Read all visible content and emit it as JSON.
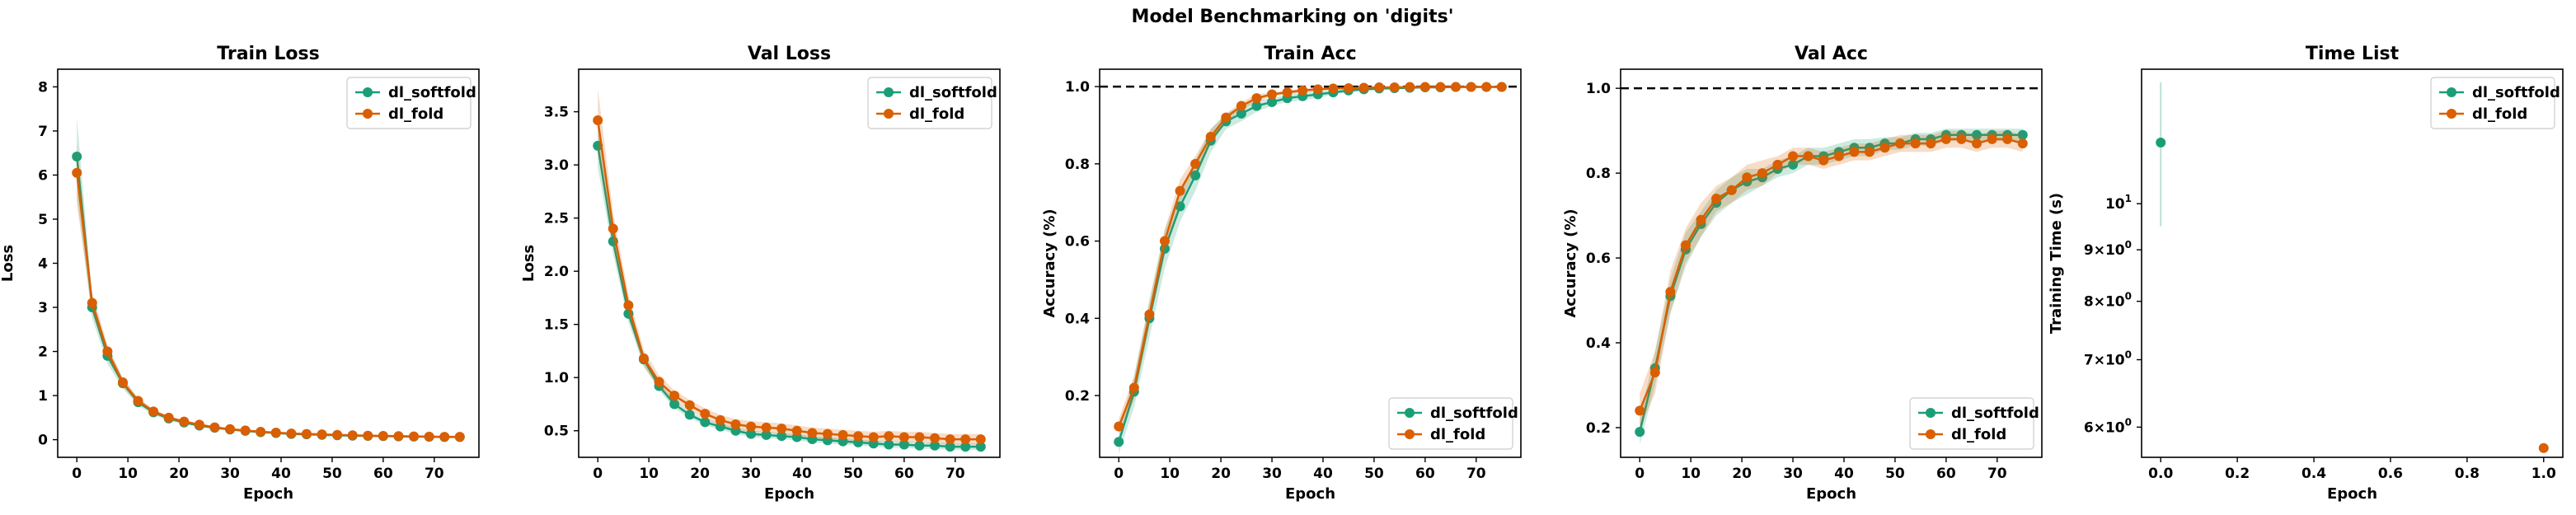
{
  "figure": {
    "title": "Model Benchmarking on 'digits'",
    "series_colors": {
      "dl_softfold": "#1b9e77",
      "dl_fold": "#d95f02"
    }
  },
  "chart_data": [
    {
      "type": "line",
      "title": "Train Loss",
      "xlabel": "Epoch",
      "ylabel": "Loss",
      "xlim": [
        -3.75,
        78.75
      ],
      "ylim": [
        -0.4,
        8.4
      ],
      "xticks": [
        0,
        10,
        20,
        30,
        40,
        50,
        60,
        70
      ],
      "yticks": [
        0,
        1,
        2,
        3,
        4,
        5,
        6,
        7,
        8
      ],
      "grid": false,
      "legend": "top-right",
      "x": [
        0,
        3,
        6,
        9,
        12,
        15,
        18,
        21,
        24,
        27,
        30,
        33,
        36,
        39,
        42,
        45,
        48,
        51,
        54,
        57,
        60,
        63,
        66,
        69,
        72,
        75
      ],
      "series": [
        {
          "name": "dl_softfold",
          "color": "#1b9e77",
          "values": [
            6.42,
            3.0,
            1.9,
            1.28,
            0.85,
            0.62,
            0.48,
            0.39,
            0.32,
            0.27,
            0.23,
            0.2,
            0.17,
            0.15,
            0.13,
            0.12,
            0.11,
            0.1,
            0.09,
            0.085,
            0.08,
            0.075,
            0.07,
            0.065,
            0.06,
            0.06
          ],
          "band": [
            0.9,
            0.25,
            0.18,
            0.12,
            0.08,
            0.06,
            0.05,
            0.04,
            0.03,
            0.03,
            0.02,
            0.02,
            0.02,
            0.02,
            0.02,
            0.02,
            0.01,
            0.01,
            0.01,
            0.01,
            0.01,
            0.01,
            0.01,
            0.01,
            0.01,
            0.01
          ]
        },
        {
          "name": "dl_fold",
          "color": "#d95f02",
          "values": [
            6.05,
            3.1,
            2.0,
            1.3,
            0.88,
            0.64,
            0.5,
            0.41,
            0.34,
            0.28,
            0.24,
            0.21,
            0.18,
            0.16,
            0.14,
            0.13,
            0.12,
            0.11,
            0.1,
            0.09,
            0.085,
            0.08,
            0.075,
            0.07,
            0.065,
            0.065
          ],
          "band": [
            0.7,
            0.22,
            0.16,
            0.1,
            0.07,
            0.05,
            0.04,
            0.03,
            0.03,
            0.02,
            0.02,
            0.02,
            0.02,
            0.02,
            0.02,
            0.01,
            0.01,
            0.01,
            0.01,
            0.01,
            0.01,
            0.01,
            0.01,
            0.01,
            0.01,
            0.01
          ]
        }
      ]
    },
    {
      "type": "line",
      "title": "Val Loss",
      "xlabel": "Epoch",
      "ylabel": "Loss",
      "xlim": [
        -3.75,
        78.75
      ],
      "ylim": [
        0.25,
        3.9
      ],
      "xticks": [
        0,
        10,
        20,
        30,
        40,
        50,
        60,
        70
      ],
      "yticks": [
        0.5,
        1.0,
        1.5,
        2.0,
        2.5,
        3.0,
        3.5
      ],
      "ytick_labels": [
        "0.5",
        "1.0",
        "1.5",
        "2.0",
        "2.5",
        "3.0",
        "3.5"
      ],
      "grid": false,
      "legend": "top-right",
      "x": [
        0,
        3,
        6,
        9,
        12,
        15,
        18,
        21,
        24,
        27,
        30,
        33,
        36,
        39,
        42,
        45,
        48,
        51,
        54,
        57,
        60,
        63,
        66,
        69,
        72,
        75
      ],
      "series": [
        {
          "name": "dl_softfold",
          "color": "#1b9e77",
          "values": [
            3.18,
            2.28,
            1.6,
            1.17,
            0.92,
            0.75,
            0.65,
            0.58,
            0.54,
            0.5,
            0.47,
            0.46,
            0.45,
            0.44,
            0.42,
            0.41,
            0.4,
            0.39,
            0.38,
            0.37,
            0.37,
            0.36,
            0.36,
            0.35,
            0.35,
            0.35
          ],
          "band": [
            0.2,
            0.12,
            0.08,
            0.06,
            0.04,
            0.04,
            0.03,
            0.03,
            0.03,
            0.03,
            0.03,
            0.03,
            0.03,
            0.03,
            0.03,
            0.03,
            0.03,
            0.03,
            0.03,
            0.03,
            0.03,
            0.03,
            0.03,
            0.03,
            0.03,
            0.03
          ]
        },
        {
          "name": "dl_fold",
          "color": "#d95f02",
          "values": [
            3.42,
            2.4,
            1.68,
            1.18,
            0.96,
            0.83,
            0.74,
            0.66,
            0.6,
            0.56,
            0.54,
            0.53,
            0.52,
            0.5,
            0.48,
            0.47,
            0.46,
            0.45,
            0.44,
            0.45,
            0.44,
            0.44,
            0.43,
            0.42,
            0.42,
            0.42
          ],
          "band": [
            0.3,
            0.15,
            0.1,
            0.08,
            0.06,
            0.05,
            0.05,
            0.05,
            0.05,
            0.05,
            0.05,
            0.05,
            0.05,
            0.05,
            0.05,
            0.05,
            0.05,
            0.05,
            0.05,
            0.05,
            0.05,
            0.05,
            0.05,
            0.05,
            0.05,
            0.05
          ]
        }
      ]
    },
    {
      "type": "line",
      "title": "Train Acc",
      "xlabel": "Epoch",
      "ylabel": "Accuracy (%)",
      "xlim": [
        -3.75,
        78.75
      ],
      "ylim": [
        0.04,
        1.045
      ],
      "xticks": [
        0,
        10,
        20,
        30,
        40,
        50,
        60,
        70
      ],
      "yticks": [
        0.2,
        0.4,
        0.6,
        0.8,
        1.0
      ],
      "ytick_labels": [
        "0.2",
        "0.4",
        "0.6",
        "0.8",
        "1.0"
      ],
      "hline": 1.0,
      "grid": false,
      "legend": "bottom-right",
      "x": [
        0,
        3,
        6,
        9,
        12,
        15,
        18,
        21,
        24,
        27,
        30,
        33,
        36,
        39,
        42,
        45,
        48,
        51,
        54,
        57,
        60,
        63,
        66,
        69,
        72,
        75
      ],
      "series": [
        {
          "name": "dl_softfold",
          "color": "#1b9e77",
          "values": [
            0.08,
            0.21,
            0.4,
            0.58,
            0.69,
            0.77,
            0.86,
            0.91,
            0.93,
            0.95,
            0.96,
            0.97,
            0.975,
            0.98,
            0.985,
            0.99,
            0.993,
            0.995,
            0.996,
            0.997,
            0.998,
            0.998,
            0.999,
            0.999,
            0.999,
            0.999
          ],
          "band": [
            0.03,
            0.04,
            0.05,
            0.05,
            0.04,
            0.04,
            0.03,
            0.02,
            0.02,
            0.015,
            0.01,
            0.01,
            0.01,
            0.01,
            0.005,
            0.005,
            0.005,
            0.005,
            0.003,
            0.003,
            0.002,
            0.002,
            0.002,
            0.002,
            0.002,
            0.002
          ]
        },
        {
          "name": "dl_fold",
          "color": "#d95f02",
          "values": [
            0.12,
            0.22,
            0.41,
            0.6,
            0.73,
            0.8,
            0.87,
            0.92,
            0.95,
            0.97,
            0.98,
            0.985,
            0.99,
            0.993,
            0.995,
            0.996,
            0.997,
            0.998,
            0.998,
            0.999,
            0.999,
            0.999,
            0.999,
            0.999,
            0.999,
            0.999
          ],
          "band": [
            0.02,
            0.03,
            0.03,
            0.03,
            0.03,
            0.02,
            0.02,
            0.01,
            0.01,
            0.01,
            0.005,
            0.005,
            0.005,
            0.003,
            0.003,
            0.002,
            0.002,
            0.002,
            0.002,
            0.001,
            0.001,
            0.001,
            0.001,
            0.001,
            0.001,
            0.001
          ]
        }
      ]
    },
    {
      "type": "line",
      "title": "Val Acc",
      "xlabel": "Epoch",
      "ylabel": "Accuracy (%)",
      "xlim": [
        -3.75,
        78.75
      ],
      "ylim": [
        0.13,
        1.045
      ],
      "xticks": [
        0,
        10,
        20,
        30,
        40,
        50,
        60,
        70
      ],
      "yticks": [
        0.2,
        0.4,
        0.6,
        0.8,
        1.0
      ],
      "ytick_labels": [
        "0.2",
        "0.4",
        "0.6",
        "0.8",
        "1.0"
      ],
      "hline": 1.0,
      "grid": false,
      "legend": "bottom-right",
      "x": [
        0,
        3,
        6,
        9,
        12,
        15,
        18,
        21,
        24,
        27,
        30,
        33,
        36,
        39,
        42,
        45,
        48,
        51,
        54,
        57,
        60,
        63,
        66,
        69,
        72,
        75
      ],
      "series": [
        {
          "name": "dl_softfold",
          "color": "#1b9e77",
          "values": [
            0.19,
            0.34,
            0.51,
            0.62,
            0.68,
            0.73,
            0.76,
            0.78,
            0.79,
            0.81,
            0.82,
            0.84,
            0.84,
            0.85,
            0.86,
            0.86,
            0.87,
            0.87,
            0.88,
            0.88,
            0.89,
            0.89,
            0.89,
            0.89,
            0.89,
            0.89
          ],
          "band": [
            0.03,
            0.04,
            0.04,
            0.04,
            0.03,
            0.03,
            0.03,
            0.03,
            0.02,
            0.02,
            0.02,
            0.02,
            0.02,
            0.02,
            0.02,
            0.02,
            0.015,
            0.015,
            0.015,
            0.015,
            0.015,
            0.015,
            0.015,
            0.015,
            0.015,
            0.015
          ]
        },
        {
          "name": "dl_fold",
          "color": "#d95f02",
          "values": [
            0.24,
            0.33,
            0.52,
            0.63,
            0.69,
            0.74,
            0.76,
            0.79,
            0.8,
            0.82,
            0.84,
            0.84,
            0.83,
            0.84,
            0.85,
            0.85,
            0.86,
            0.87,
            0.87,
            0.87,
            0.88,
            0.88,
            0.87,
            0.88,
            0.88,
            0.87
          ],
          "band": [
            0.04,
            0.05,
            0.05,
            0.04,
            0.04,
            0.03,
            0.03,
            0.03,
            0.03,
            0.02,
            0.02,
            0.02,
            0.02,
            0.02,
            0.02,
            0.02,
            0.02,
            0.02,
            0.02,
            0.02,
            0.02,
            0.02,
            0.02,
            0.02,
            0.02,
            0.02
          ]
        }
      ]
    },
    {
      "type": "scatter",
      "title": "Time List",
      "xlabel": "Epoch",
      "ylabel": "Training Time (s)",
      "yscale": "log",
      "xlim": [
        -0.05,
        1.05
      ],
      "ylim": [
        5.6,
        13.6
      ],
      "xticks": [
        0.0,
        0.2,
        0.4,
        0.6,
        0.8,
        1.0
      ],
      "xtick_labels": [
        "0.0",
        "0.2",
        "0.4",
        "0.6",
        "0.8",
        "1.0"
      ],
      "yticks": [
        6,
        7,
        8,
        9,
        10
      ],
      "ytick_labels": [
        {
          "base": "6",
          "mult": "×",
          "pow": "10",
          "exp": "0"
        },
        {
          "base": "7",
          "mult": "×",
          "pow": "10",
          "exp": "0"
        },
        {
          "base": "8",
          "mult": "×",
          "pow": "10",
          "exp": "0"
        },
        {
          "base": "9",
          "mult": "×",
          "pow": "10",
          "exp": "0"
        },
        {
          "base": "",
          "mult": "",
          "pow": "10",
          "exp": "1"
        }
      ],
      "grid": false,
      "legend": "top-right",
      "points": [
        {
          "name": "dl_softfold",
          "color": "#1b9e77",
          "x": 0.0,
          "y": 11.5,
          "err_low": 9.5,
          "err_high": 13.2
        },
        {
          "name": "dl_fold",
          "color": "#d95f02",
          "x": 1.0,
          "y": 5.72
        }
      ]
    }
  ]
}
